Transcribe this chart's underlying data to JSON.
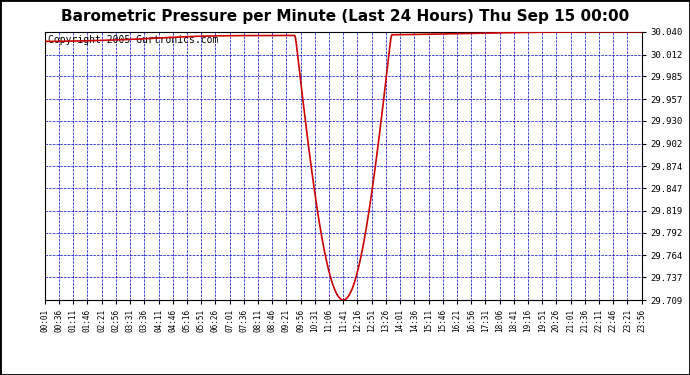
{
  "title": "Barometric Pressure per Minute (Last 24 Hours) Thu Sep 15 00:00",
  "copyright": "Copyright 2005 Gurtronics.com",
  "background_color": "#ffffff",
  "plot_background_color": "#ffffff",
  "line_color": "#cc0000",
  "grid_color": "#0000cc",
  "border_color": "#000000",
  "title_fontsize": 11,
  "copyright_fontsize": 7,
  "y_min": 29.709,
  "y_max": 30.04,
  "yticks": [
    29.709,
    29.737,
    29.764,
    29.792,
    29.819,
    29.847,
    29.874,
    29.902,
    29.93,
    29.957,
    29.985,
    30.012,
    30.04
  ],
  "x_tick_labels": [
    "00:01",
    "00:36",
    "01:11",
    "01:46",
    "02:21",
    "02:56",
    "03:31",
    "03:36",
    "04:11",
    "04:46",
    "05:16",
    "05:51",
    "06:26",
    "07:01",
    "07:36",
    "08:11",
    "08:46",
    "09:21",
    "09:56",
    "10:31",
    "11:06",
    "11:41",
    "12:16",
    "12:51",
    "13:26",
    "14:01",
    "14:36",
    "15:11",
    "15:46",
    "16:21",
    "16:56",
    "17:31",
    "18:06",
    "18:41",
    "19:16",
    "19:51",
    "20:26",
    "21:01",
    "21:36",
    "22:11",
    "22:46",
    "23:21",
    "23:56"
  ],
  "line_width": 1.2
}
